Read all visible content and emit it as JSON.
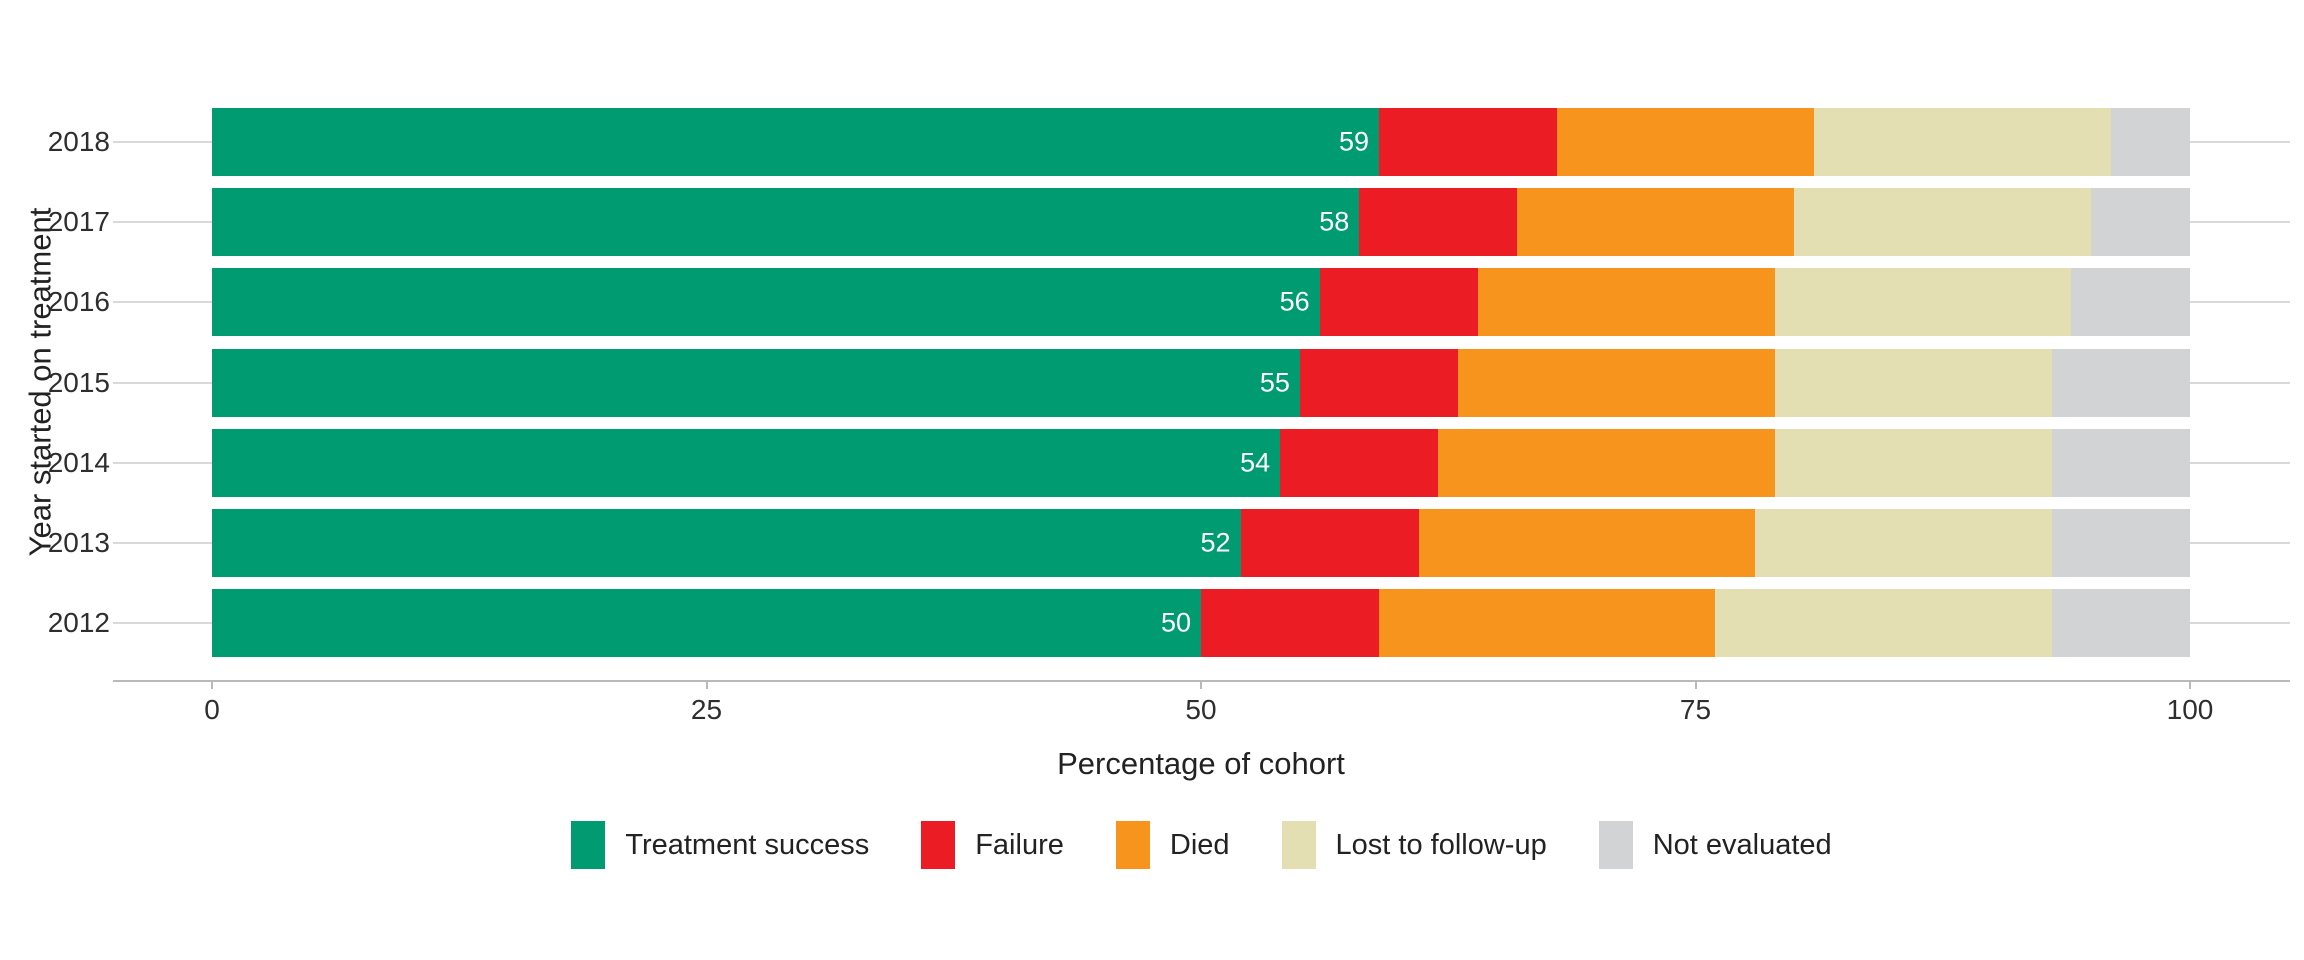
{
  "chart_data": {
    "type": "bar",
    "orientation": "horizontal",
    "stacked": true,
    "title": "",
    "xlabel": "Percentage of cohort",
    "ylabel": "Year started on treatment",
    "categories": [
      "2018",
      "2017",
      "2016",
      "2015",
      "2014",
      "2013",
      "2012"
    ],
    "series": [
      {
        "name": "Treatment success",
        "color": "#009b70",
        "values": [
          59,
          58,
          56,
          55,
          54,
          52,
          50
        ]
      },
      {
        "name": "Failure",
        "color": "#ec1c24",
        "values": [
          9,
          8,
          8,
          8,
          8,
          9,
          9
        ]
      },
      {
        "name": "Died",
        "color": "#f7941e",
        "values": [
          13,
          14,
          15,
          16,
          17,
          17,
          17
        ]
      },
      {
        "name": "Lost to follow-up",
        "color": "#e4dfb2",
        "values": [
          15,
          15,
          15,
          14,
          14,
          15,
          17
        ]
      },
      {
        "name": "Not evaluated",
        "color": "#d2d3d4",
        "values": [
          4,
          5,
          6,
          7,
          7,
          7,
          7
        ]
      }
    ],
    "bar_labels": [
      "59",
      "58",
      "56",
      "55",
      "54",
      "52",
      "50"
    ],
    "bar_label_series": "Treatment success",
    "x_ticks": [
      "0",
      "25",
      "50",
      "75",
      "100"
    ],
    "x_tick_values": [
      0,
      25,
      50,
      75,
      100
    ],
    "xlim": [
      0,
      100
    ],
    "grid": "horizontal-only",
    "gridline_color": "#d9d9d9",
    "axis_line_color": "#b9b9b9",
    "value_label_color": "#ffffff",
    "legend_position": "bottom"
  }
}
